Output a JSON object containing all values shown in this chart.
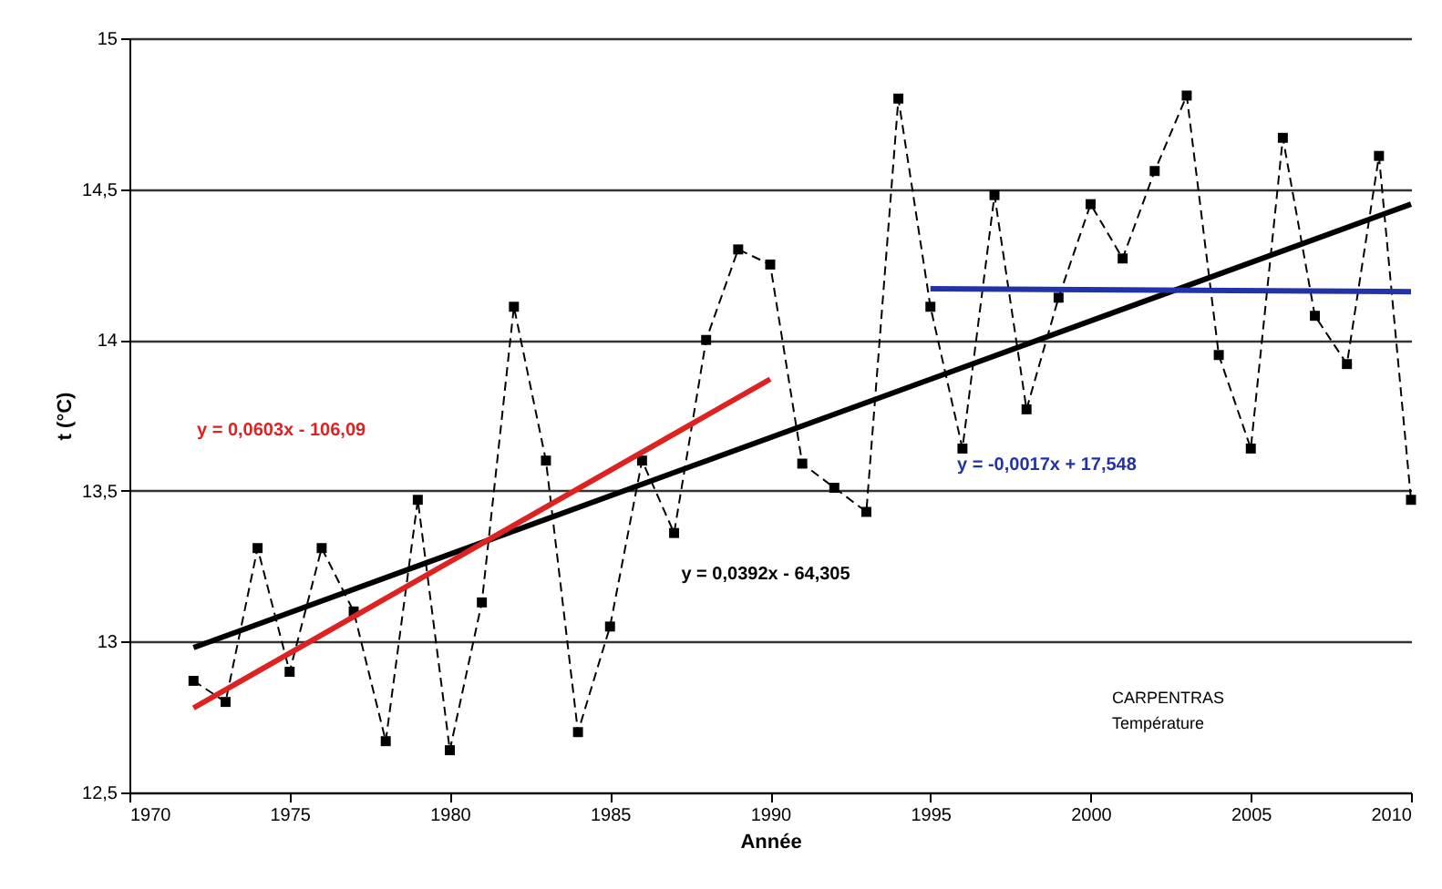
{
  "chart_data": {
    "type": "line",
    "xlabel": "Année",
    "ylabel": "t (°C)",
    "xlim": [
      1970,
      2010
    ],
    "xticks": [
      1970,
      1975,
      1980,
      1985,
      1990,
      1995,
      2000,
      2005,
      2010
    ],
    "ylim": [
      12.5,
      15
    ],
    "yticks": [
      {
        "value": 12.5,
        "label": "12,5"
      },
      13,
      {
        "value": 13.5,
        "label": "13,5"
      },
      14,
      {
        "value": 14.5,
        "label": "14,5"
      },
      15
    ],
    "grid": "y",
    "legend": false,
    "x": [
      1972,
      1973,
      1974,
      1975,
      1976,
      1977,
      1978,
      1979,
      1980,
      1981,
      1982,
      1983,
      1984,
      1985,
      1986,
      1987,
      1988,
      1989,
      1990,
      1991,
      1992,
      1993,
      1994,
      1995,
      1996,
      1997,
      1998,
      1999,
      2000,
      2001,
      2002,
      2003,
      2004,
      2005,
      2006,
      2007,
      2008,
      2009,
      2010
    ],
    "series": [
      {
        "color": "#000000",
        "marker": "square",
        "line_style": "dashed",
        "values": [
          12.87,
          12.8,
          13.31,
          12.9,
          13.31,
          13.1,
          12.67,
          13.47,
          12.64,
          13.13,
          14.11,
          13.6,
          12.7,
          13.05,
          13.6,
          13.36,
          14.0,
          14.3,
          14.25,
          13.59,
          13.51,
          13.43,
          14.8,
          14.11,
          13.64,
          14.48,
          13.77,
          14.14,
          14.45,
          14.27,
          14.56,
          14.81,
          13.95,
          13.64,
          14.67,
          14.08,
          13.92,
          14.61,
          13.47
        ]
      },
      {
        "type": "line",
        "color": "#000000",
        "marker": "none",
        "line_style": "solid",
        "x": [
          1972,
          2010
        ],
        "values": [
          12.98,
          14.45
        ]
      },
      {
        "type": "line",
        "color": "#dd2222",
        "marker": "none",
        "line_style": "solid",
        "x": [
          1972,
          1990
        ],
        "values": [
          12.78,
          13.87
        ]
      },
      {
        "type": "line",
        "color": "#2233aa",
        "marker": "none",
        "line_style": "solid",
        "x": [
          1995,
          2010
        ],
        "values": [
          14.17,
          14.16
        ]
      }
    ],
    "annotations": [
      "y = 0,0603x - 106,09",
      "y = 0,0392x - 64,305",
      "y = -0,0017x + 17,548",
      "CARPENTRAS",
      "Température"
    ]
  }
}
